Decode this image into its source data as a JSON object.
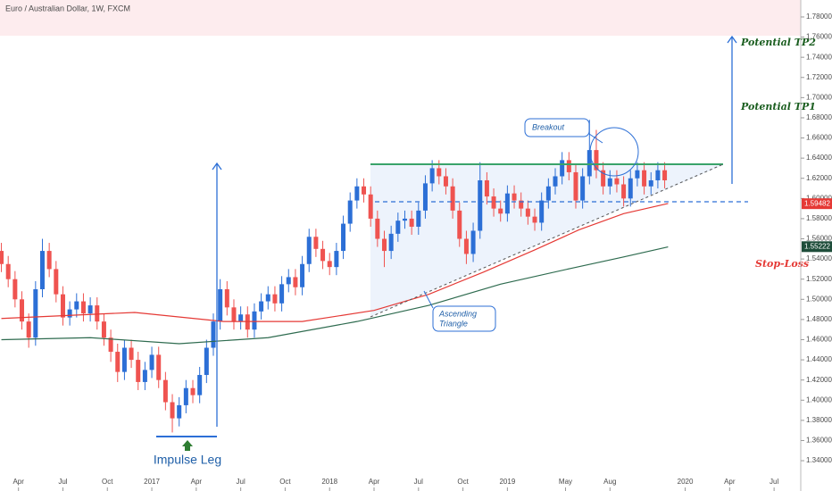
{
  "chart_data": {
    "type": "candlestick",
    "title": "Euro / Australian Dollar, 1W, FXCM",
    "up_color": "#2c6fd6",
    "down_color": "#ef5350",
    "x": [
      8,
      10,
      12,
      14,
      16,
      18,
      20,
      22,
      24,
      26,
      28,
      30,
      32,
      34,
      36,
      38,
      40,
      42,
      44,
      46,
      48,
      50,
      52,
      54,
      56,
      58,
      60,
      62,
      64,
      66,
      68,
      70,
      72,
      74,
      76,
      78,
      80,
      82,
      84,
      86,
      88,
      90,
      92,
      94,
      96,
      98,
      100,
      102,
      104,
      106,
      108,
      110,
      112,
      114,
      116,
      118,
      120,
      122,
      124,
      126,
      128,
      130,
      132,
      134,
      136,
      138,
      140,
      142,
      144,
      146,
      148,
      150,
      152,
      154,
      156,
      158,
      160,
      162,
      164,
      166,
      168,
      170,
      172,
      174,
      176,
      178,
      180,
      182,
      184,
      186,
      188,
      190,
      192,
      194,
      196,
      198,
      200,
      202
    ],
    "open": [
      1.548,
      1.535,
      1.52,
      1.5,
      1.478,
      1.462,
      1.51,
      1.548,
      1.53,
      1.505,
      1.482,
      1.49,
      1.498,
      1.486,
      1.494,
      1.478,
      1.462,
      1.448,
      1.428,
      1.452,
      1.44,
      1.418,
      1.43,
      1.445,
      1.42,
      1.398,
      1.382,
      1.395,
      1.412,
      1.405,
      1.425,
      1.452,
      1.478,
      1.51,
      1.492,
      1.478,
      1.485,
      1.47,
      1.488,
      1.498,
      1.505,
      1.496,
      1.515,
      1.522,
      1.512,
      1.535,
      1.562,
      1.55,
      1.538,
      1.532,
      1.548,
      1.575,
      1.598,
      1.612,
      1.604,
      1.58,
      1.56,
      1.548,
      1.565,
      1.578,
      1.58,
      1.572,
      1.588,
      1.615,
      1.63,
      1.622,
      1.612,
      1.588,
      1.56,
      1.545,
      1.568,
      1.618,
      1.602,
      1.59,
      1.585,
      1.605,
      1.598,
      1.59,
      1.582,
      1.576,
      1.598,
      1.612,
      1.622,
      1.638,
      1.626,
      1.598,
      1.622,
      1.648,
      1.628,
      1.612,
      1.62,
      1.614,
      1.6,
      1.62,
      1.628,
      1.612,
      1.618,
      1.628
    ],
    "high": [
      1.556,
      1.543,
      1.528,
      1.508,
      1.486,
      1.518,
      1.56,
      1.556,
      1.538,
      1.513,
      1.498,
      1.506,
      1.506,
      1.502,
      1.502,
      1.486,
      1.47,
      1.456,
      1.46,
      1.46,
      1.448,
      1.438,
      1.453,
      1.453,
      1.428,
      1.406,
      1.403,
      1.42,
      1.42,
      1.433,
      1.46,
      1.486,
      1.52,
      1.518,
      1.5,
      1.493,
      1.493,
      1.496,
      1.506,
      1.513,
      1.513,
      1.523,
      1.53,
      1.53,
      1.543,
      1.57,
      1.57,
      1.558,
      1.546,
      1.556,
      1.583,
      1.606,
      1.62,
      1.62,
      1.612,
      1.588,
      1.568,
      1.573,
      1.586,
      1.588,
      1.588,
      1.596,
      1.623,
      1.638,
      1.638,
      1.63,
      1.62,
      1.596,
      1.568,
      1.576,
      1.636,
      1.626,
      1.61,
      1.598,
      1.613,
      1.613,
      1.606,
      1.598,
      1.59,
      1.606,
      1.62,
      1.63,
      1.646,
      1.646,
      1.634,
      1.63,
      1.678,
      1.668,
      1.636,
      1.628,
      1.628,
      1.622,
      1.628,
      1.636,
      1.636,
      1.626,
      1.636,
      1.636
    ],
    "low": [
      1.527,
      1.512,
      1.492,
      1.47,
      1.452,
      1.454,
      1.502,
      1.522,
      1.497,
      1.474,
      1.474,
      1.482,
      1.478,
      1.478,
      1.47,
      1.454,
      1.438,
      1.418,
      1.42,
      1.432,
      1.41,
      1.41,
      1.422,
      1.412,
      1.39,
      1.368,
      1.374,
      1.387,
      1.397,
      1.397,
      1.417,
      1.444,
      1.47,
      1.484,
      1.47,
      1.47,
      1.462,
      1.462,
      1.48,
      1.49,
      1.488,
      1.488,
      1.507,
      1.504,
      1.504,
      1.527,
      1.542,
      1.53,
      1.524,
      1.524,
      1.54,
      1.567,
      1.59,
      1.596,
      1.572,
      1.552,
      1.532,
      1.54,
      1.557,
      1.57,
      1.564,
      1.564,
      1.58,
      1.607,
      1.614,
      1.604,
      1.58,
      1.552,
      1.535,
      1.537,
      1.56,
      1.594,
      1.582,
      1.577,
      1.577,
      1.59,
      1.582,
      1.574,
      1.568,
      1.568,
      1.59,
      1.604,
      1.614,
      1.618,
      1.59,
      1.59,
      1.614,
      1.62,
      1.604,
      1.604,
      1.606,
      1.592,
      1.592,
      1.612,
      1.604,
      1.604,
      1.61,
      1.61
    ],
    "close": [
      1.535,
      1.52,
      1.5,
      1.478,
      1.462,
      1.51,
      1.548,
      1.53,
      1.505,
      1.482,
      1.49,
      1.498,
      1.486,
      1.494,
      1.478,
      1.462,
      1.448,
      1.428,
      1.452,
      1.44,
      1.418,
      1.43,
      1.445,
      1.42,
      1.398,
      1.382,
      1.395,
      1.412,
      1.405,
      1.425,
      1.452,
      1.478,
      1.51,
      1.492,
      1.478,
      1.485,
      1.47,
      1.488,
      1.498,
      1.505,
      1.496,
      1.515,
      1.522,
      1.512,
      1.535,
      1.562,
      1.55,
      1.538,
      1.532,
      1.548,
      1.575,
      1.598,
      1.612,
      1.604,
      1.58,
      1.56,
      1.548,
      1.565,
      1.578,
      1.58,
      1.572,
      1.588,
      1.615,
      1.63,
      1.622,
      1.612,
      1.588,
      1.56,
      1.545,
      1.568,
      1.618,
      1.602,
      1.59,
      1.585,
      1.605,
      1.598,
      1.59,
      1.582,
      1.576,
      1.598,
      1.612,
      1.622,
      1.638,
      1.626,
      1.598,
      1.622,
      1.648,
      1.628,
      1.612,
      1.62,
      1.614,
      1.6,
      1.62,
      1.628,
      1.612,
      1.618,
      1.628,
      1.618
    ],
    "lines": [
      {
        "color": "#e53935",
        "x": [
          8,
          47,
          73,
          96,
          117,
          133,
          149,
          164,
          177,
          190,
          203
        ],
        "values": [
          1.481,
          1.487,
          1.478,
          1.478,
          1.489,
          1.505,
          1.527,
          1.549,
          1.569,
          1.585,
          1.595
        ]
      },
      {
        "color": "#2e6b4f",
        "x": [
          8,
          34,
          60,
          86,
          112,
          133,
          154,
          175,
          190,
          203
        ],
        "values": [
          1.46,
          1.462,
          1.456,
          1.462,
          1.478,
          1.494,
          1.515,
          1.531,
          1.542,
          1.552
        ]
      }
    ],
    "price_labels": [
      {
        "value": 1.59482,
        "color": "#e53935"
      },
      {
        "value": 1.55222,
        "color": "#1e4d3a"
      }
    ],
    "xlim": [
      7.6,
      241.8
    ],
    "xticks": [
      {
        "value": 13,
        "label": "Apr"
      },
      {
        "value": 26,
        "label": "Jul"
      },
      {
        "value": 39,
        "label": "Oct"
      },
      {
        "value": 52,
        "label": "2017"
      },
      {
        "value": 65,
        "label": "Apr"
      },
      {
        "value": 78,
        "label": "Jul"
      },
      {
        "value": 91,
        "label": "Oct"
      },
      {
        "value": 104,
        "label": "2018"
      },
      {
        "value": 117,
        "label": "Apr"
      },
      {
        "value": 130,
        "label": "Jul"
      },
      {
        "value": 143,
        "label": "Oct"
      },
      {
        "value": 156,
        "label": "2019"
      },
      {
        "value": 173,
        "label": "May"
      },
      {
        "value": 186,
        "label": "Aug"
      },
      {
        "value": 208,
        "label": "2020"
      },
      {
        "value": 221,
        "label": "Apr"
      },
      {
        "value": 234,
        "label": "Jul"
      }
    ],
    "ylim": [
      1.3188,
      1.7968
    ],
    "yticks": [
      {
        "value": 1.34,
        "label": "1.34000"
      },
      {
        "value": 1.36,
        "label": "1.36000"
      },
      {
        "value": 1.38,
        "label": "1.38000"
      },
      {
        "value": 1.4,
        "label": "1.40000"
      },
      {
        "value": 1.42,
        "label": "1.42000"
      },
      {
        "value": 1.44,
        "label": "1.44000"
      },
      {
        "value": 1.46,
        "label": "1.46000"
      },
      {
        "value": 1.48,
        "label": "1.48000"
      },
      {
        "value": 1.5,
        "label": "1.50000"
      },
      {
        "value": 1.52,
        "label": "1.52000"
      },
      {
        "value": 1.54,
        "label": "1.54000"
      },
      {
        "value": 1.56,
        "label": "1.56000"
      },
      {
        "value": 1.58,
        "label": "1.58000"
      },
      {
        "value": 1.6,
        "label": "1.60000"
      },
      {
        "value": 1.62,
        "label": "1.62000"
      },
      {
        "value": 1.64,
        "label": "1.64000"
      },
      {
        "value": 1.66,
        "label": "1.66000"
      },
      {
        "value": 1.68,
        "label": "1.68000"
      },
      {
        "value": 1.7,
        "label": "1.70000"
      },
      {
        "value": 1.72,
        "label": "1.72000"
      },
      {
        "value": 1.74,
        "label": "1.74000"
      },
      {
        "value": 1.76,
        "label": "1.76000"
      },
      {
        "value": 1.78,
        "label": "1.78000"
      }
    ],
    "annotations": {
      "tp2": "Potential TP2",
      "tp1": "Potential TP1",
      "stop": "Stop-Loss",
      "breakout": "Breakout",
      "triangle_1": "Ascending",
      "triangle_2": "Triangle",
      "impulse": "Impulse Leg"
    }
  }
}
